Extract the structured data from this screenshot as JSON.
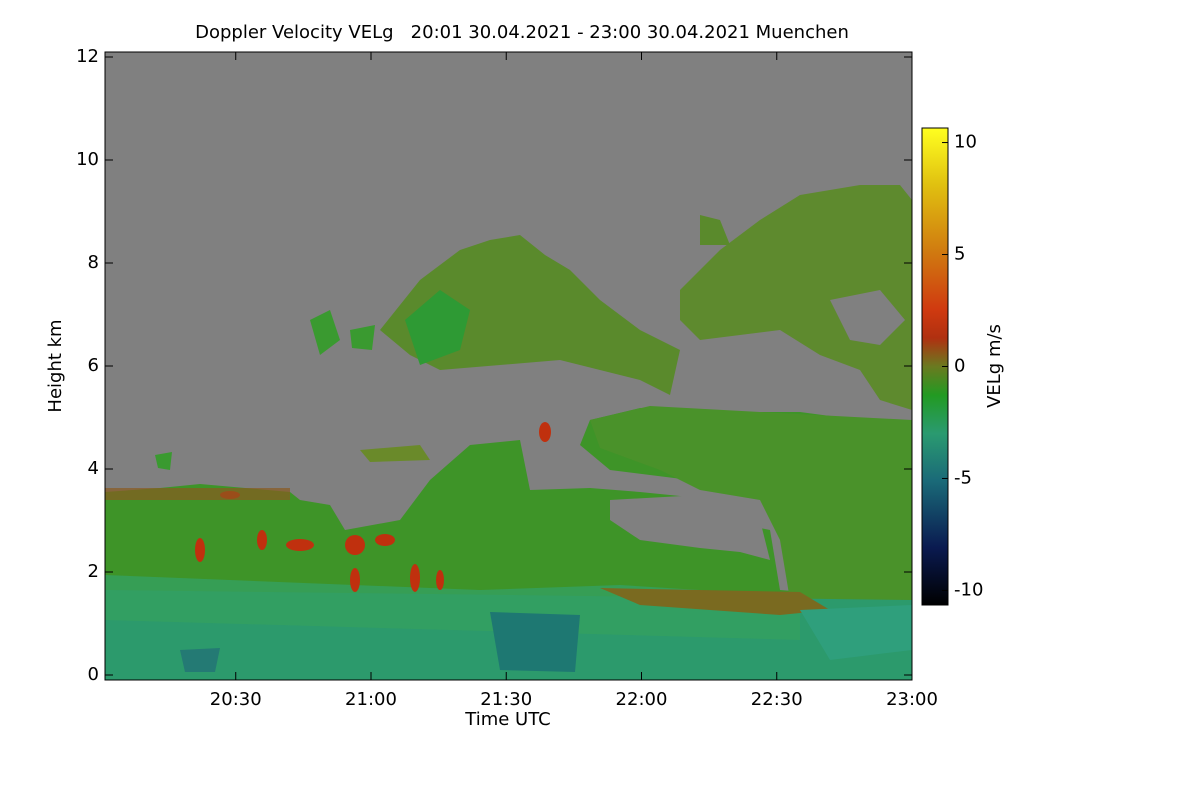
{
  "chart_data": {
    "type": "heatmap",
    "title": "Doppler Velocity VELg   20:01 30.04.2021 - 23:00 30.04.2021 Muenchen",
    "x_label": "Time UTC",
    "y_label": "Height km",
    "xlim": [
      20.0167,
      23.0
    ],
    "xticks": [
      {
        "value": 20.5,
        "label": "20:30"
      },
      {
        "value": 21.0,
        "label": "21:00"
      },
      {
        "value": 21.5,
        "label": "21:30"
      },
      {
        "value": 22.0,
        "label": "22:00"
      },
      {
        "value": 22.5,
        "label": "22:30"
      },
      {
        "value": 23.0,
        "label": "23:00"
      }
    ],
    "ylim": [
      0,
      12
    ],
    "yticks": [
      0,
      2,
      4,
      6,
      8,
      10,
      12
    ],
    "colorbar": {
      "label": "VELg m/s",
      "lim": [
        -10.65,
        10.65
      ],
      "ticks": [
        10,
        5,
        0,
        -5,
        -10
      ]
    }
  }
}
